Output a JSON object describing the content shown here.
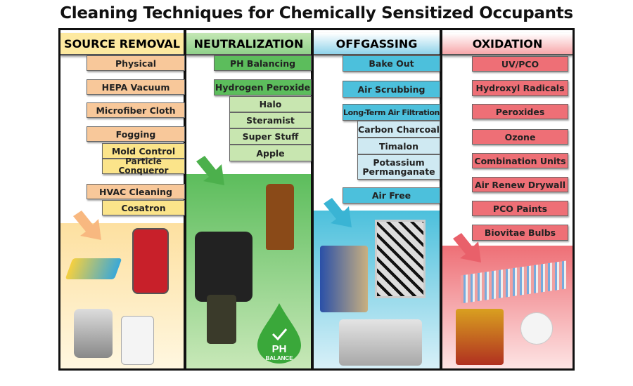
{
  "title": "Cleaning Techniques for Chemically Sensitized Occupants",
  "colors": {
    "source_removal": "#f8c89a",
    "source_sub": "#fbe48a",
    "neutralization": "#5cbd5c",
    "neutralization_sub": "#c8e6b0",
    "offgassing": "#4cc0dc",
    "offgassing_sub": "#cfe9f2",
    "oxidation": "#ee6f76"
  },
  "columns": [
    {
      "header": "SOURCE REMOVAL",
      "items": [
        "Physical",
        "HEPA Vacuum",
        "Microfiber Cloth",
        "Fogging",
        "Mold Control",
        "Particle Conqueror",
        "HVAC Cleaning",
        "Cosatron"
      ]
    },
    {
      "header": "NEUTRALIZATION",
      "items": [
        "PH Balancing",
        "Hydrogen Peroxide",
        "Halo",
        "Steramist",
        "Super Stuff",
        "Apple"
      ],
      "logo_text": "PH BALANCE"
    },
    {
      "header": "OFFGASSING",
      "items": [
        "Bake Out",
        "Air Scrubbing",
        "Long-Term Air Filtration",
        "Carbon Charcoal",
        "Timalon",
        "Potassium Permanganate",
        "Air Free"
      ]
    },
    {
      "header": "OXIDATION",
      "items": [
        "UV/PCO",
        "Hydroxyl Radicals",
        "Peroxides",
        "Ozone",
        "Combination Units",
        "Air Renew Drywall",
        "PCO Paints",
        "Biovitae Bulbs"
      ]
    }
  ]
}
